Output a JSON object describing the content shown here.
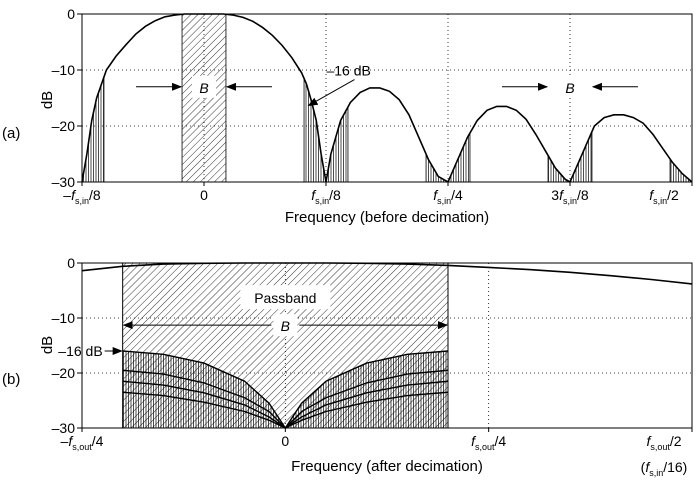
{
  "chart_data": [
    {
      "type": "line",
      "panel_label": "(a)",
      "xlabel": "Frequency (before decimation)",
      "ylabel": "dB",
      "x_unit": "f_s,in",
      "xlim": [
        -0.125,
        0.5
      ],
      "ylim": [
        -30,
        0
      ],
      "grid": true,
      "x_ticks": [
        {
          "value": -0.125,
          "pre": "–",
          "italic": "f",
          "sub": "s,in",
          "post": "/8"
        },
        {
          "value": 0,
          "pre": "0",
          "italic": "",
          "sub": "",
          "post": ""
        },
        {
          "value": 0.125,
          "pre": "",
          "italic": "f",
          "sub": "s,in",
          "post": "/8"
        },
        {
          "value": 0.25,
          "pre": "",
          "italic": "f",
          "sub": "s,in",
          "post": "/4"
        },
        {
          "value": 0.375,
          "pre": "3",
          "italic": "f",
          "sub": "s,in",
          "post": "/8"
        },
        {
          "value": 0.5,
          "pre": "",
          "italic": "f",
          "sub": "s,in",
          "post": "/2"
        }
      ],
      "y_ticks": [
        {
          "value": 0,
          "label": "0"
        },
        {
          "value": -10,
          "label": "–10"
        },
        {
          "value": -20,
          "label": "–20"
        },
        {
          "value": -30,
          "label": "–30"
        }
      ],
      "series": [
        {
          "x": [
            -0.125,
            -0.12,
            -0.115,
            -0.11,
            -0.105,
            -0.1,
            -0.09,
            -0.08,
            -0.07,
            -0.06,
            -0.05,
            -0.04,
            -0.03,
            -0.02,
            -0.01,
            0,
            0.01,
            0.02,
            0.03,
            0.04,
            0.05,
            0.06,
            0.07,
            0.08,
            0.09,
            0.1,
            0.105,
            0.11,
            0.115,
            0.12,
            0.125,
            0.13,
            0.14,
            0.15,
            0.16,
            0.17,
            0.18,
            0.19,
            0.2,
            0.21,
            0.22,
            0.23,
            0.24,
            0.25,
            0.26,
            0.27,
            0.28,
            0.29,
            0.3,
            0.31,
            0.32,
            0.33,
            0.34,
            0.35,
            0.36,
            0.37,
            0.375,
            0.38,
            0.39,
            0.4,
            0.41,
            0.42,
            0.43,
            0.44,
            0.45,
            0.46,
            0.47,
            0.48,
            0.49,
            0.5
          ],
          "y": [
            -30,
            -25,
            -19,
            -15,
            -12.5,
            -10,
            -7.5,
            -5.5,
            -3.6,
            -2.2,
            -1.2,
            -0.5,
            -0.2,
            0,
            0,
            0,
            0,
            0,
            -0.2,
            -0.6,
            -1.3,
            -2.4,
            -3.8,
            -5.6,
            -7.8,
            -10.5,
            -12.5,
            -15.5,
            -19,
            -25,
            -30,
            -25,
            -19,
            -15.8,
            -14,
            -13.2,
            -13.2,
            -13.8,
            -15.3,
            -18,
            -22,
            -26,
            -29,
            -30,
            -26,
            -22,
            -19,
            -17.2,
            -16.5,
            -16.5,
            -17.2,
            -18.8,
            -21.5,
            -24.5,
            -27.5,
            -29.5,
            -30,
            -28,
            -24,
            -20,
            -18.5,
            -18,
            -18,
            -18.5,
            -19.5,
            -21.5,
            -24,
            -26.5,
            -28.5,
            -30
          ]
        }
      ],
      "shaded_bands": [
        {
          "type": "passband",
          "x": [
            -0.0225,
            0.0225
          ],
          "label": "B"
        },
        {
          "type": "alias",
          "x": [
            -0.125,
            -0.1025
          ]
        },
        {
          "type": "alias",
          "x": [
            0.1025,
            0.1475
          ]
        },
        {
          "type": "alias",
          "x": [
            0.2275,
            0.2725
          ]
        },
        {
          "type": "alias",
          "x": [
            0.3525,
            0.3975
          ]
        },
        {
          "type": "alias",
          "x": [
            0.4775,
            0.5
          ]
        }
      ],
      "annotations": [
        {
          "text": "–16 dB",
          "x": 0.105,
          "y": -16
        },
        {
          "text": "B",
          "x": 0,
          "y": -13
        },
        {
          "text": "B",
          "x": 0.375,
          "y": -13
        }
      ]
    },
    {
      "type": "line",
      "panel_label": "(b)",
      "xlabel": "Frequency (after decimation)",
      "ylabel": "dB",
      "x_unit": "f_s,out",
      "xlim": [
        -0.25,
        0.5
      ],
      "ylim": [
        -30,
        0
      ],
      "grid": true,
      "x_ticks": [
        {
          "value": -0.25,
          "pre": "–",
          "italic": "f",
          "sub": "s,out",
          "post": "/4"
        },
        {
          "value": 0,
          "pre": "0",
          "italic": "",
          "sub": "",
          "post": ""
        },
        {
          "value": 0.25,
          "pre": "",
          "italic": "f",
          "sub": "s,out",
          "post": "/4"
        },
        {
          "value": 0.5,
          "pre": "",
          "italic": "f",
          "sub": "s,out",
          "post": "/2"
        }
      ],
      "x_tick_note": {
        "value": 0.5,
        "pre": "(",
        "italic": "f",
        "sub": "s,in",
        "post": "/16)"
      },
      "y_ticks": [
        {
          "value": 0,
          "label": "0"
        },
        {
          "value": -10,
          "label": "–10"
        },
        {
          "value": -20,
          "label": "–20"
        },
        {
          "value": -30,
          "label": "–30"
        }
      ],
      "series": [
        {
          "x": [
            -0.25,
            -0.2,
            -0.15,
            -0.1,
            -0.05,
            0,
            0.05,
            0.1,
            0.15,
            0.2,
            0.25,
            0.3,
            0.35,
            0.4,
            0.45,
            0.5
          ],
          "y": [
            -1.4,
            -0.6,
            -0.2,
            -0.05,
            0,
            0,
            0,
            -0.05,
            -0.2,
            -0.45,
            -0.8,
            -1.2,
            -1.7,
            -2.3,
            -3,
            -3.8
          ]
        }
      ],
      "passband": {
        "x": [
          -0.2,
          0.2
        ],
        "label_top": "Passband",
        "label": "B"
      },
      "alias_curves": [
        {
          "x": [
            -0.2,
            -0.15,
            -0.1,
            -0.05,
            -0.02,
            0,
            0.02,
            0.05,
            0.1,
            0.15,
            0.2
          ],
          "y": [
            -16,
            -16.6,
            -18.2,
            -21.5,
            -25.5,
            -30,
            -25.5,
            -21.5,
            -18.2,
            -16.6,
            -16
          ]
        },
        {
          "x": [
            -0.2,
            -0.15,
            -0.1,
            -0.05,
            -0.02,
            0,
            0.02,
            0.05,
            0.1,
            0.15,
            0.2
          ],
          "y": [
            -19.5,
            -20.2,
            -21.8,
            -24.5,
            -27,
            -30,
            -27,
            -24.5,
            -21.8,
            -20.2,
            -19.5
          ]
        },
        {
          "x": [
            -0.2,
            -0.15,
            -0.1,
            -0.05,
            -0.02,
            0,
            0.02,
            0.05,
            0.1,
            0.15,
            0.2
          ],
          "y": [
            -21.5,
            -22.2,
            -23.6,
            -25.8,
            -28,
            -30,
            -28,
            -25.8,
            -23.6,
            -22.2,
            -21.5
          ]
        },
        {
          "x": [
            -0.2,
            -0.15,
            -0.1,
            -0.05,
            -0.02,
            0,
            0.02,
            0.05,
            0.1,
            0.15,
            0.2
          ],
          "y": [
            -23.5,
            -24.1,
            -25.3,
            -27,
            -28.6,
            -30,
            -28.6,
            -27,
            -25.3,
            -24.1,
            -23.5
          ]
        }
      ],
      "annotations": [
        {
          "text": "–16 dB",
          "x": -0.2,
          "y": -16
        }
      ]
    }
  ]
}
